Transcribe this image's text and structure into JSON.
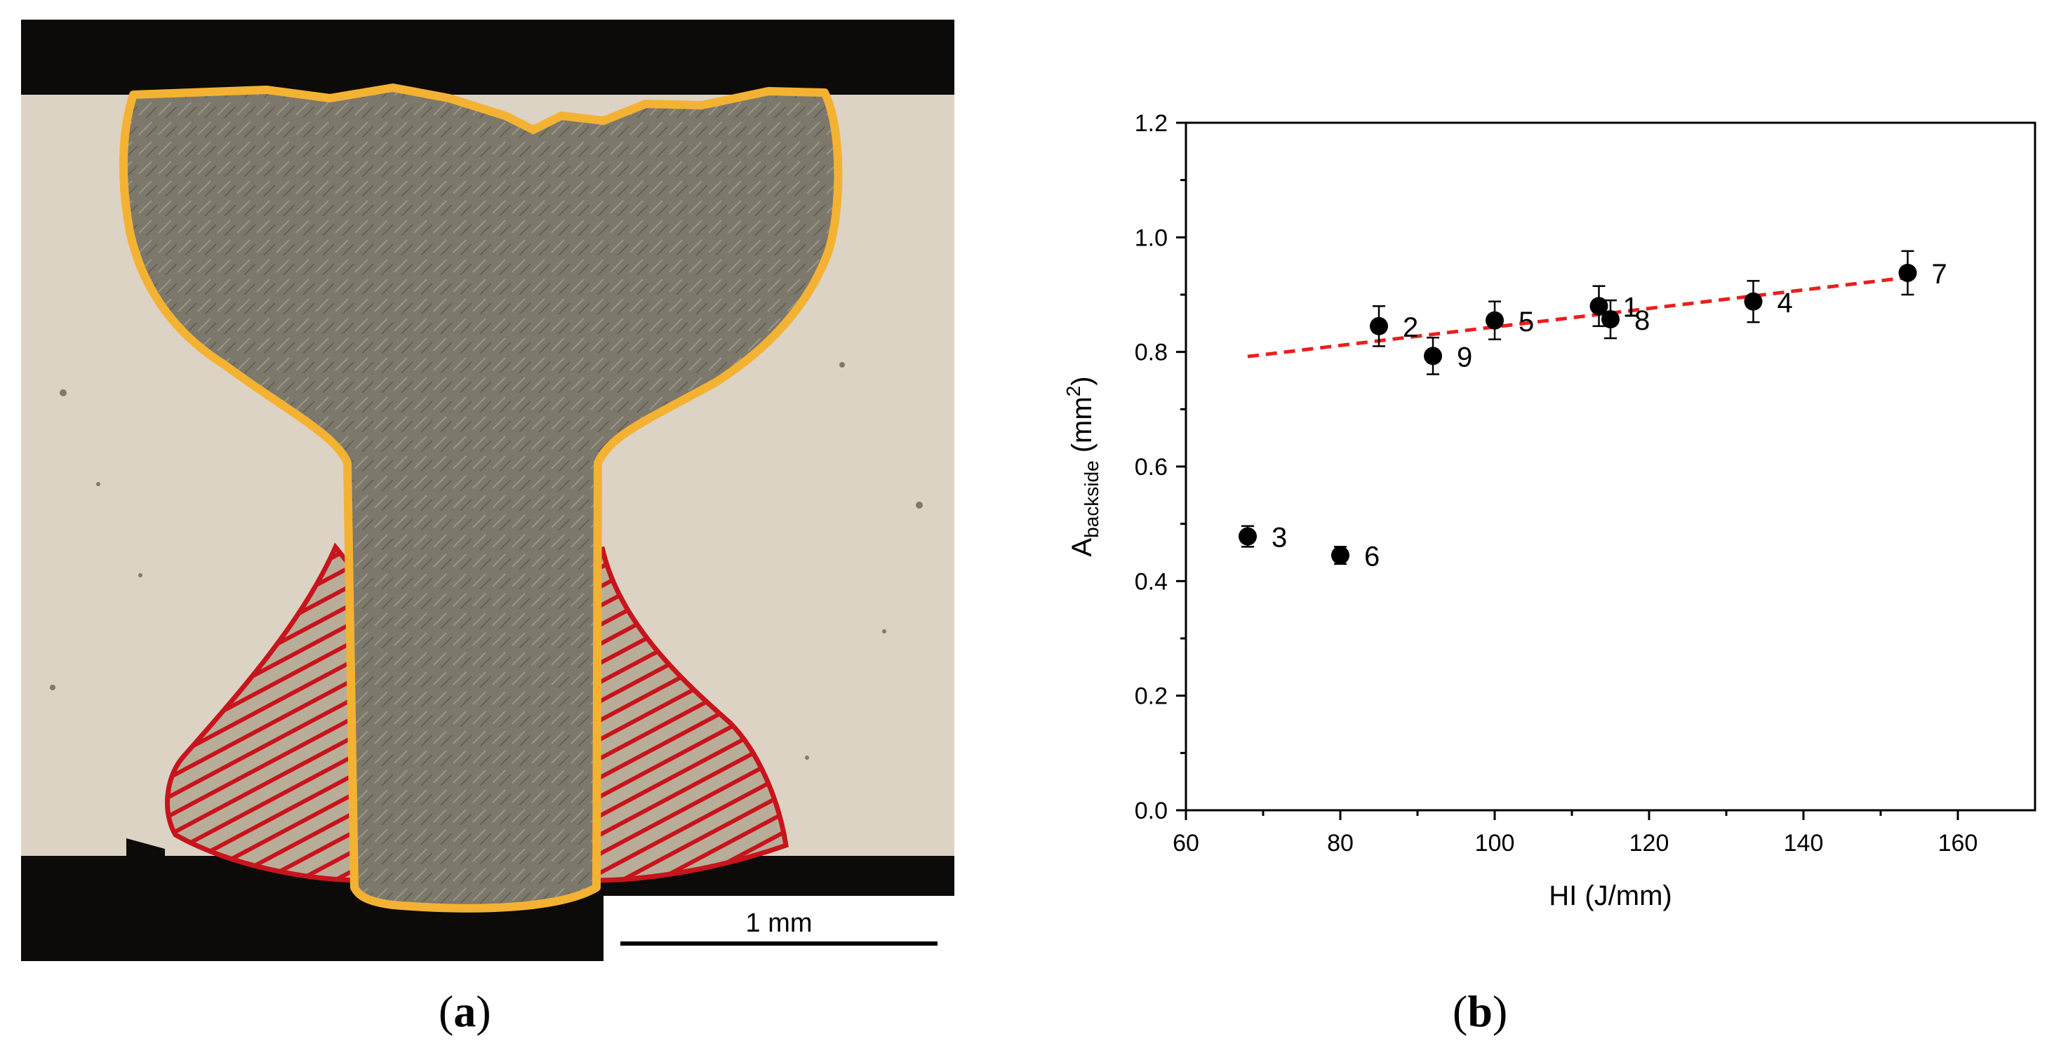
{
  "panel_a": {
    "caption_open": "(",
    "caption_letter": "a",
    "caption_close": ")",
    "scale_bar_label": "1 mm",
    "colors": {
      "outline": "#f4b233",
      "haz": "#c8141c",
      "base_metal": "#ddd3c4",
      "weld_metal": "#7d786c",
      "background": "#0c0b09"
    }
  },
  "panel_b": {
    "caption_open": "(",
    "caption_letter": "b",
    "caption_close": ")"
  },
  "chart_data": {
    "type": "scatter",
    "xlabel": "HI (J/mm)",
    "ylabel_main": "A",
    "ylabel_sub": "backside",
    "ylabel_unit_open": " (mm",
    "ylabel_sup": "2",
    "ylabel_unit_close": ")",
    "xlim": [
      60,
      170
    ],
    "ylim": [
      0.0,
      1.2
    ],
    "xticks": [
      60,
      80,
      100,
      120,
      140,
      160
    ],
    "xtick_labels": [
      "60",
      "80",
      "100",
      "120",
      "140",
      "160"
    ],
    "yticks": [
      0.0,
      0.2,
      0.4,
      0.6,
      0.8,
      1.0,
      1.2
    ],
    "ytick_labels": [
      "0.0",
      "0.2",
      "0.4",
      "0.6",
      "0.8",
      "1.0",
      "1.2"
    ],
    "grid": false,
    "marker_color": "#000000",
    "points": [
      {
        "label": "1",
        "x": 113.5,
        "y": 0.88,
        "err": 0.035
      },
      {
        "label": "2",
        "x": 85.0,
        "y": 0.845,
        "err": 0.035
      },
      {
        "label": "3",
        "x": 68.0,
        "y": 0.478,
        "err": 0.018
      },
      {
        "label": "4",
        "x": 133.5,
        "y": 0.888,
        "err": 0.036
      },
      {
        "label": "5",
        "x": 100.0,
        "y": 0.855,
        "err": 0.033
      },
      {
        "label": "6",
        "x": 80.0,
        "y": 0.445,
        "err": 0.015
      },
      {
        "label": "7",
        "x": 153.5,
        "y": 0.938,
        "err": 0.038
      },
      {
        "label": "8",
        "x": 115.0,
        "y": 0.857,
        "err": 0.033
      },
      {
        "label": "9",
        "x": 92.0,
        "y": 0.793,
        "err": 0.032
      }
    ],
    "trendline": {
      "x": [
        68,
        153.5
      ],
      "y": [
        0.792,
        0.93
      ],
      "color": "#e8201e",
      "style": "dashed"
    }
  }
}
